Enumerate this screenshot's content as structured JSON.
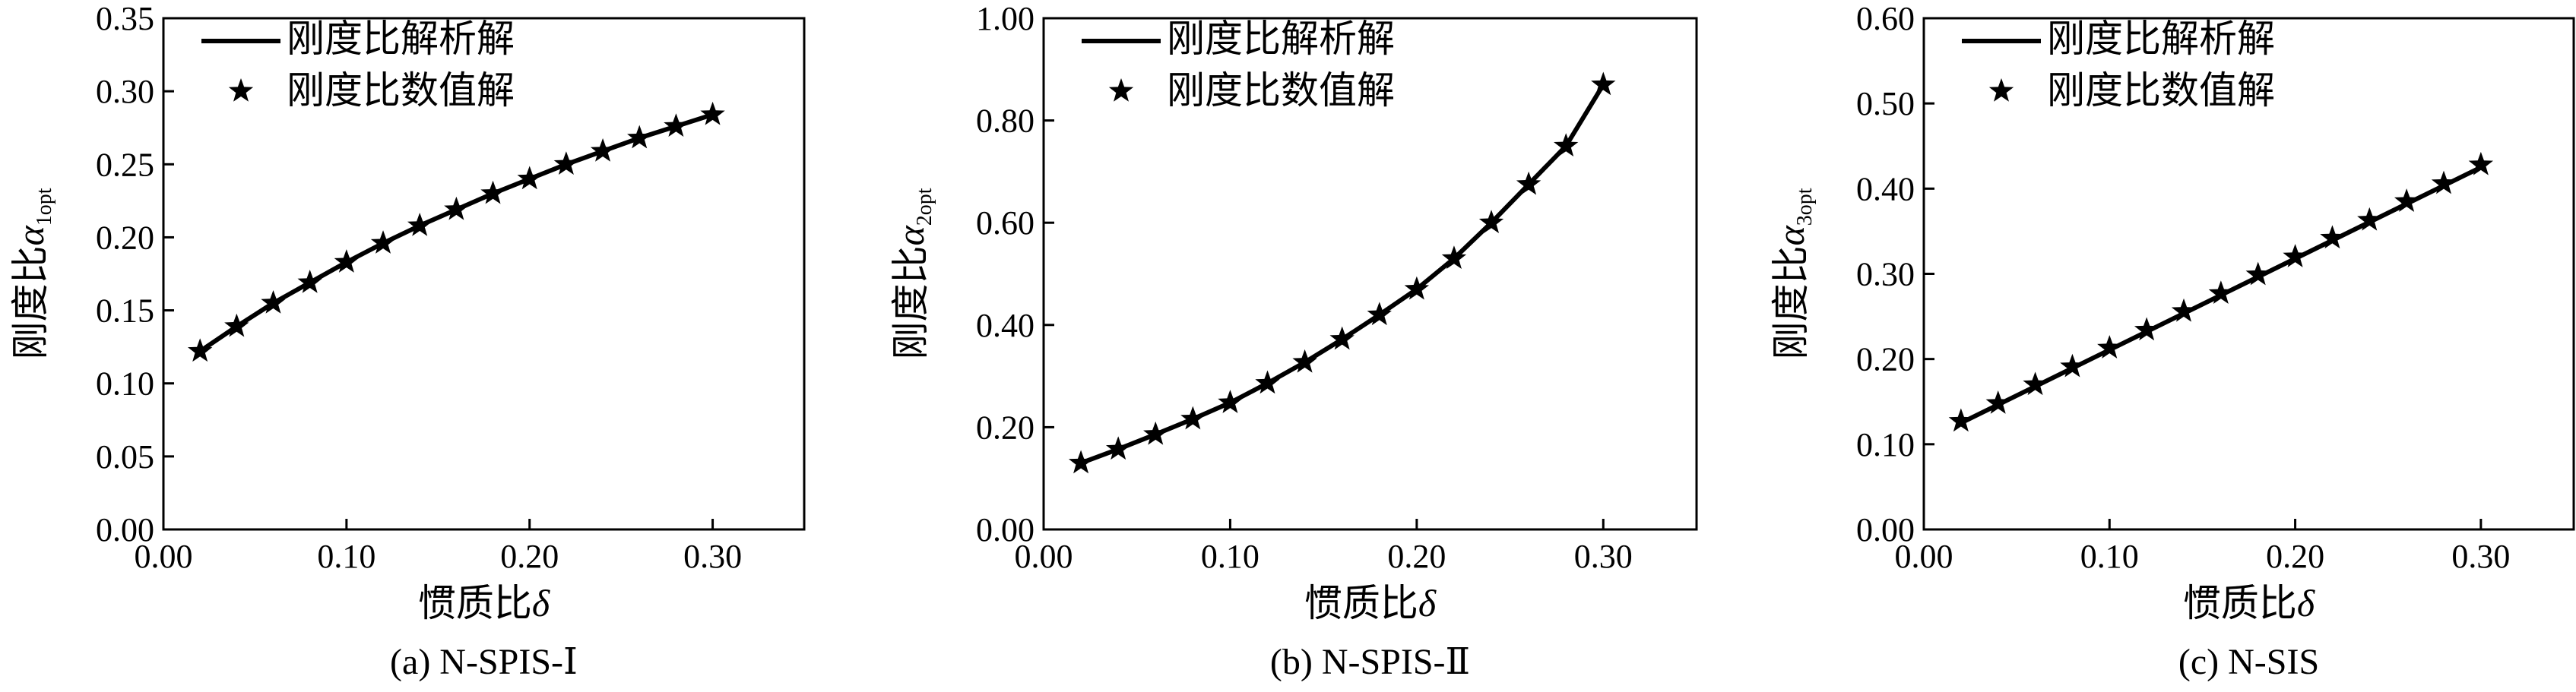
{
  "chart_data": [
    {
      "type": "line",
      "caption": "(a) N-SPIS-Ⅰ",
      "xlabel_text": "惯质比",
      "xlabel_symbol": "δ",
      "ylabel_text": "刚度比",
      "ylabel_symbol": "α",
      "ylabel_sub": "1opt",
      "xlim": [
        0,
        0.35
      ],
      "ylim": [
        0,
        0.35
      ],
      "xticks": [
        0,
        0.1,
        0.2,
        0.3
      ],
      "xtick_labels": [
        "0.00",
        "0.10",
        "0.20",
        "0.30"
      ],
      "yticks": [
        0,
        0.05,
        0.1,
        0.15,
        0.2,
        0.25,
        0.3,
        0.35
      ],
      "ytick_labels": [
        "0.00",
        "0.05",
        "0.10",
        "0.15",
        "0.20",
        "0.25",
        "0.30",
        "0.35"
      ],
      "legend_position": "top-left",
      "series": [
        {
          "name": "刚度比解析解",
          "style": "solid-line",
          "x": [
            0.02,
            0.04,
            0.06,
            0.08,
            0.1,
            0.12,
            0.14,
            0.16,
            0.18,
            0.2,
            0.22,
            0.24,
            0.26,
            0.28,
            0.3
          ],
          "y": [
            0.122,
            0.139,
            0.155,
            0.169,
            0.183,
            0.196,
            0.208,
            0.219,
            0.23,
            0.24,
            0.25,
            0.259,
            0.268,
            0.276,
            0.284
          ]
        },
        {
          "name": "刚度比数值解",
          "style": "star-marker",
          "x": [
            0.02,
            0.04,
            0.06,
            0.08,
            0.1,
            0.12,
            0.14,
            0.16,
            0.18,
            0.2,
            0.22,
            0.24,
            0.26,
            0.28,
            0.3
          ],
          "y": [
            0.122,
            0.139,
            0.155,
            0.169,
            0.183,
            0.196,
            0.208,
            0.219,
            0.23,
            0.24,
            0.25,
            0.259,
            0.268,
            0.276,
            0.284
          ]
        }
      ]
    },
    {
      "type": "line",
      "caption": "(b) N-SPIS-Ⅱ",
      "xlabel_text": "惯质比",
      "xlabel_symbol": "δ",
      "ylabel_text": "刚度比",
      "ylabel_symbol": "α",
      "ylabel_sub": "2opt",
      "xlim": [
        0,
        0.35
      ],
      "ylim": [
        0,
        1.0
      ],
      "xticks": [
        0,
        0.1,
        0.2,
        0.3
      ],
      "xtick_labels": [
        "0.00",
        "0.10",
        "0.20",
        "0.30"
      ],
      "yticks": [
        0,
        0.2,
        0.4,
        0.6,
        0.8,
        1.0
      ],
      "ytick_labels": [
        "0.00",
        "0.20",
        "0.40",
        "0.60",
        "0.80",
        "1.00"
      ],
      "legend_position": "top-left",
      "series": [
        {
          "name": "刚度比解析解",
          "style": "solid-line",
          "x": [
            0.02,
            0.04,
            0.06,
            0.08,
            0.1,
            0.12,
            0.14,
            0.16,
            0.18,
            0.2,
            0.22,
            0.24,
            0.26,
            0.28,
            0.3
          ],
          "y": [
            0.13,
            0.157,
            0.186,
            0.216,
            0.248,
            0.286,
            0.327,
            0.372,
            0.42,
            0.47,
            0.53,
            0.6,
            0.675,
            0.75,
            0.87
          ]
        },
        {
          "name": "刚度比数值解",
          "style": "star-marker",
          "x": [
            0.02,
            0.04,
            0.06,
            0.08,
            0.1,
            0.12,
            0.14,
            0.16,
            0.18,
            0.2,
            0.22,
            0.24,
            0.26,
            0.28,
            0.3
          ],
          "y": [
            0.13,
            0.157,
            0.186,
            0.216,
            0.248,
            0.286,
            0.327,
            0.372,
            0.42,
            0.47,
            0.53,
            0.6,
            0.675,
            0.75,
            0.87
          ]
        }
      ]
    },
    {
      "type": "line",
      "caption": "(c) N-SIS",
      "xlabel_text": "惯质比",
      "xlabel_symbol": "δ",
      "ylabel_text": "刚度比",
      "ylabel_symbol": "α",
      "ylabel_sub": "3opt",
      "xlim": [
        0,
        0.35
      ],
      "ylim": [
        0,
        0.6
      ],
      "xticks": [
        0,
        0.1,
        0.2,
        0.3
      ],
      "xtick_labels": [
        "0.00",
        "0.10",
        "0.20",
        "0.30"
      ],
      "yticks": [
        0,
        0.1,
        0.2,
        0.3,
        0.4,
        0.5,
        0.6
      ],
      "ytick_labels": [
        "0.00",
        "0.10",
        "0.20",
        "0.30",
        "0.40",
        "0.50",
        "0.60"
      ],
      "legend_position": "top-left",
      "series": [
        {
          "name": "刚度比解析解",
          "style": "solid-line",
          "x": [
            0.02,
            0.3
          ],
          "y": [
            0.125,
            0.425
          ]
        },
        {
          "name": "刚度比数值解",
          "style": "star-marker",
          "x": [
            0.02,
            0.04,
            0.06,
            0.08,
            0.1,
            0.12,
            0.14,
            0.16,
            0.18,
            0.2,
            0.22,
            0.24,
            0.26,
            0.28,
            0.3
          ],
          "y": [
            0.127,
            0.148,
            0.17,
            0.191,
            0.213,
            0.234,
            0.256,
            0.277,
            0.299,
            0.32,
            0.342,
            0.363,
            0.385,
            0.406,
            0.428
          ]
        }
      ]
    }
  ]
}
